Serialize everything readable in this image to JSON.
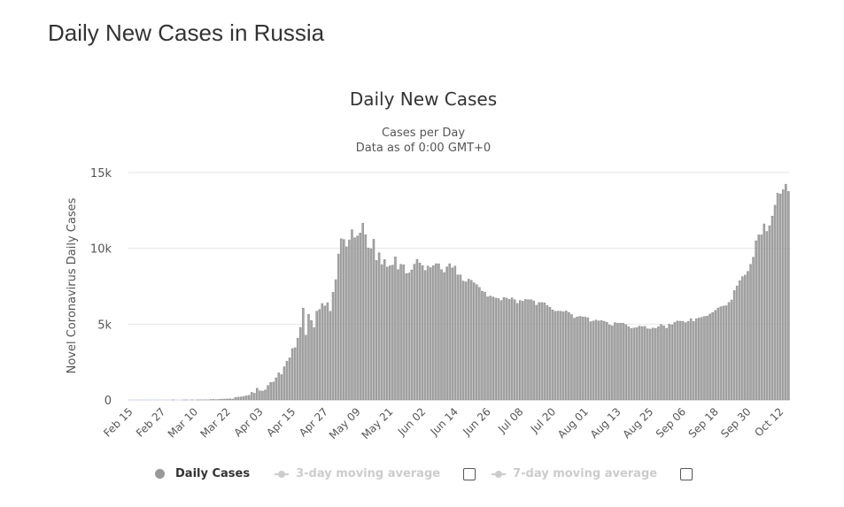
{
  "page_title": "Daily New Cases in Russia",
  "chart_data": {
    "type": "bar",
    "title": "Daily New Cases",
    "subtitle": [
      "Cases per Day",
      "Data as of 0:00 GMT+0"
    ],
    "ylabel": "Novel Coronavirus Daily Cases",
    "xlabel": "",
    "ylim": [
      0,
      15000
    ],
    "y_ticks": [
      "0",
      "5k",
      "10k",
      "15k"
    ],
    "x_range": [
      "Feb 15",
      "Oct 15"
    ],
    "x_tick_labels": [
      "Feb 15",
      "Feb 27",
      "Mar 10",
      "Mar 22",
      "Apr 03",
      "Apr 15",
      "Apr 27",
      "May 09",
      "May 21",
      "Jun 02",
      "Jun 14",
      "Jun 26",
      "Jul 08",
      "Jul 20",
      "Aug 01",
      "Aug 13",
      "Aug 25",
      "Sep 06",
      "Sep 18",
      "Sep 30",
      "Oct 12"
    ],
    "grid": true,
    "legend_position": "bottom",
    "colors": {
      "bar": "#a6a6a6",
      "bar_edge": "#8a8a8a",
      "grid": "#e6e6e6",
      "axis": "#ccd6eb"
    },
    "series": [
      {
        "name": "Daily Cases",
        "values": [
          0,
          0,
          0,
          0,
          0,
          0,
          0,
          0,
          0,
          0,
          0,
          0,
          0,
          0,
          0,
          0,
          1,
          0,
          0,
          0,
          1,
          2,
          0,
          7,
          0,
          3,
          8,
          6,
          14,
          4,
          29,
          30,
          21,
          33,
          52,
          53,
          61,
          71,
          57,
          163,
          182,
          196,
          228,
          270,
          302,
          500,
          440,
          771,
          601,
          582,
          658,
          954,
          1154,
          1175,
          1459,
          1786,
          1667,
          2186,
          2558,
          2774,
          3388,
          3448,
          4070,
          4785,
          6060,
          4268,
          5642,
          5236,
          4774,
          5849,
          5966,
          6361,
          6198,
          6411,
          5841,
          7099,
          7933,
          9623,
          10633,
          10581,
          10102,
          10559,
          11231,
          10699,
          10817,
          11012,
          11656,
          10899,
          10028,
          9974,
          10598,
          9200,
          9709,
          8926,
          9263,
          8764,
          8849,
          8894,
          9434,
          8599,
          8946,
          8915,
          8338,
          8371,
          8572,
          8952,
          9268,
          9035,
          8863,
          8536,
          8831,
          8726,
          8855,
          8984,
          8985,
          8595,
          8404,
          8779,
          8987,
          8706,
          8835,
          8246,
          8248,
          7843,
          7790,
          7972,
          7889,
          7728,
          7600,
          7425,
          7176,
          7113,
          6800,
          6852,
          6791,
          6719,
          6693,
          6556,
          6760,
          6718,
          6632,
          6736,
          6611,
          6368,
          6562,
          6509,
          6635,
          6611,
          6615,
          6537,
          6248,
          6422,
          6428,
          6406,
          6234,
          6109,
          5940,
          5842,
          5862,
          5848,
          5811,
          5871,
          5765,
          5635,
          5395,
          5475,
          5509,
          5482,
          5462,
          5427,
          5159,
          5204,
          5267,
          5212,
          5241,
          5189,
          5118,
          4945,
          4892,
          5102,
          5057,
          5065,
          5061,
          4969,
          4839,
          4718,
          4748,
          4767,
          4870,
          4838,
          4852,
          4696,
          4676,
          4744,
          4711,
          4829,
          4980,
          4897,
          4729,
          4993,
          4952,
          5110,
          5205,
          5195,
          5185,
          5099,
          5185,
          5363,
          5172,
          5363,
          5406,
          5449,
          5509,
          5529,
          5670,
          5762,
          5905,
          6065,
          6148,
          6196,
          6215,
          6431,
          6595,
          7212,
          7523,
          7867,
          8135,
          8232,
          8481,
          8945,
          9412,
          10499,
          10888,
          10888,
          11615,
          11115,
          11493,
          12126,
          12846,
          13634,
          13592,
          13868,
          14231,
          13754
        ]
      }
    ]
  },
  "legend": {
    "items": [
      {
        "label": "Daily Cases",
        "active": true
      },
      {
        "label": "3-day moving average",
        "active": false
      },
      {
        "label": "7-day moving average",
        "active": false
      }
    ]
  }
}
